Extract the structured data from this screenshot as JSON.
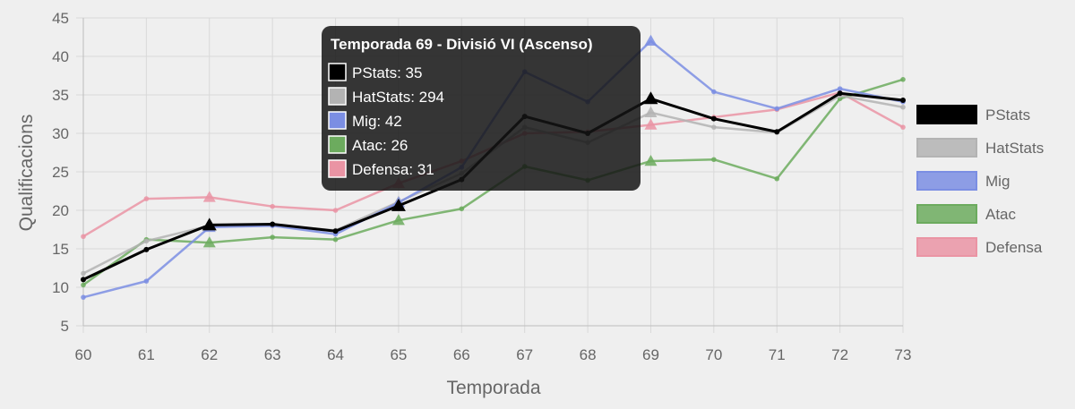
{
  "chart_data": {
    "type": "line",
    "xlabel": "Temporada",
    "ylabel": "Qualificacions",
    "ylim": [
      5,
      45
    ],
    "yticks": [
      5,
      10,
      15,
      20,
      25,
      30,
      35,
      40,
      45
    ],
    "x": [
      60,
      61,
      62,
      63,
      64,
      65,
      66,
      67,
      68,
      69,
      70,
      71,
      72,
      73
    ],
    "grid": true,
    "legend_position": "right",
    "series": [
      {
        "name": "PStats",
        "color": "#000000",
        "values": [
          11,
          14.9,
          18.1,
          18.2,
          17.3,
          20.6,
          24,
          32.2,
          30,
          34.5,
          31.9,
          30.2,
          35.2,
          34.3
        ]
      },
      {
        "name": "HatStats",
        "color": "#b3b3b3",
        "values": [
          11.8,
          16,
          18,
          18.1,
          17.4,
          21.1,
          24.8,
          30.8,
          28.8,
          32.7,
          30.8,
          30.1,
          34.9,
          33.4
        ]
      },
      {
        "name": "Mig",
        "color": "#7b8ee3",
        "values": [
          8.7,
          10.8,
          17.8,
          18,
          16.9,
          21,
          25.6,
          38,
          34.1,
          42,
          35.4,
          33.2,
          35.8,
          34.1
        ]
      },
      {
        "name": "Atac",
        "color": "#6cab5e",
        "values": [
          10.3,
          16.2,
          15.8,
          16.5,
          16.2,
          18.7,
          20.2,
          25.7,
          23.9,
          26.4,
          26.6,
          24.1,
          34.5,
          37
        ]
      },
      {
        "name": "Defensa",
        "color": "#ea94a4",
        "values": [
          16.6,
          21.5,
          21.7,
          20.5,
          20,
          23.5,
          26.4,
          30,
          30.2,
          31.1,
          32.1,
          33.1,
          35.3,
          30.8
        ]
      }
    ],
    "tooltip": {
      "title": "Temporada 69 - Divisió VI (Ascenso)",
      "lines": [
        "PStats: 35",
        "HatStats: 294",
        "Mig: 42",
        "Atac: 26",
        "Defensa: 31"
      ]
    }
  }
}
